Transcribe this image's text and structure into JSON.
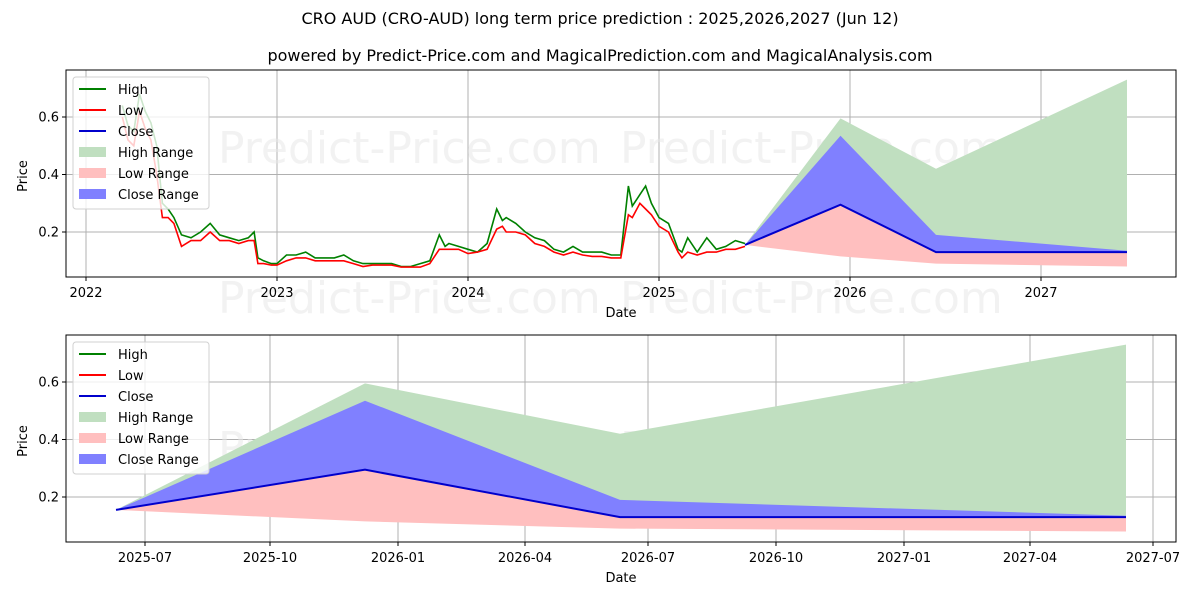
{
  "header": {
    "title": "CRO AUD (CRO-AUD) long term price prediction : 2025,2026,2027 (Jun 12)",
    "subtitle": "powered by Predict-Price.com and MagicalPrediction.com and MagicalAnalysis.com"
  },
  "watermark": "Predict-Price.com",
  "colors": {
    "high": "#008000",
    "low": "#ff0000",
    "close": "#0000cc",
    "high_range": "#c0dfc0",
    "low_range": "#ffbfbf",
    "close_range": "#8080ff"
  },
  "legend": [
    "High",
    "Low",
    "Close",
    "High Range",
    "Low Range",
    "Close Range"
  ],
  "chart_data": [
    {
      "type": "line",
      "title": "CRO AUD (CRO-AUD) long term price prediction : 2025,2026,2027 (Jun 12)",
      "xlabel": "Date",
      "ylabel": "Price",
      "xticks": [
        "2022",
        "2023",
        "2024",
        "2025",
        "2026",
        "2027"
      ],
      "yticks": [
        "0.2",
        "0.4",
        "0.6"
      ],
      "xlim": [
        2021.9,
        2027.7
      ],
      "ylim": [
        0.035,
        0.76
      ],
      "grid": true,
      "legend_position": "upper left",
      "history": {
        "x": [
          2022.19,
          2022.22,
          2022.25,
          2022.28,
          2022.31,
          2022.34,
          2022.37,
          2022.4,
          2022.43,
          2022.46,
          2022.5,
          2022.55,
          2022.6,
          2022.65,
          2022.7,
          2022.75,
          2022.8,
          2022.85,
          2022.88,
          2022.9,
          2022.93,
          2022.97,
          2023.0,
          2023.05,
          2023.1,
          2023.15,
          2023.2,
          2023.25,
          2023.3,
          2023.35,
          2023.4,
          2023.45,
          2023.5,
          2023.55,
          2023.6,
          2023.65,
          2023.7,
          2023.75,
          2023.8,
          2023.85,
          2023.88,
          2023.9,
          2023.95,
          2024.0,
          2024.05,
          2024.1,
          2024.15,
          2024.18,
          2024.2,
          2024.25,
          2024.3,
          2024.35,
          2024.4,
          2024.45,
          2024.5,
          2024.55,
          2024.6,
          2024.65,
          2024.7,
          2024.75,
          2024.8,
          2024.84,
          2024.86,
          2024.9,
          2024.93,
          2024.96,
          2025.0,
          2025.05,
          2025.1,
          2025.12,
          2025.15,
          2025.2,
          2025.25,
          2025.3,
          2025.35,
          2025.4,
          2025.45
        ],
        "high": [
          0.64,
          0.57,
          0.55,
          0.68,
          0.62,
          0.58,
          0.5,
          0.3,
          0.28,
          0.25,
          0.19,
          0.18,
          0.2,
          0.23,
          0.19,
          0.18,
          0.17,
          0.18,
          0.2,
          0.11,
          0.1,
          0.09,
          0.09,
          0.12,
          0.12,
          0.13,
          0.11,
          0.11,
          0.11,
          0.12,
          0.1,
          0.09,
          0.09,
          0.09,
          0.09,
          0.08,
          0.08,
          0.09,
          0.1,
          0.19,
          0.15,
          0.16,
          0.15,
          0.14,
          0.13,
          0.16,
          0.28,
          0.24,
          0.25,
          0.23,
          0.2,
          0.18,
          0.17,
          0.14,
          0.13,
          0.15,
          0.13,
          0.13,
          0.13,
          0.12,
          0.12,
          0.36,
          0.29,
          0.33,
          0.36,
          0.3,
          0.25,
          0.23,
          0.14,
          0.13,
          0.18,
          0.13,
          0.18,
          0.14,
          0.15,
          0.17,
          0.16
        ],
        "low": [
          0.6,
          0.52,
          0.5,
          0.62,
          0.56,
          0.52,
          0.4,
          0.25,
          0.25,
          0.23,
          0.15,
          0.17,
          0.17,
          0.2,
          0.17,
          0.17,
          0.16,
          0.17,
          0.17,
          0.09,
          0.09,
          0.085,
          0.085,
          0.1,
          0.11,
          0.11,
          0.1,
          0.1,
          0.1,
          0.1,
          0.09,
          0.08,
          0.085,
          0.085,
          0.085,
          0.078,
          0.078,
          0.078,
          0.09,
          0.14,
          0.14,
          0.14,
          0.14,
          0.125,
          0.13,
          0.14,
          0.21,
          0.22,
          0.2,
          0.2,
          0.19,
          0.16,
          0.15,
          0.13,
          0.12,
          0.13,
          0.12,
          0.115,
          0.115,
          0.11,
          0.11,
          0.26,
          0.25,
          0.3,
          0.28,
          0.26,
          0.22,
          0.2,
          0.13,
          0.11,
          0.13,
          0.12,
          0.13,
          0.13,
          0.14,
          0.14,
          0.15
        ]
      },
      "forecast": {
        "dates": [
          "2025-06-12",
          "2025-12-12",
          "2026-06-12",
          "2027-06-12"
        ],
        "x": [
          2025.45,
          2025.95,
          2026.45,
          2027.45
        ],
        "high_range_top": [
          0.155,
          0.595,
          0.42,
          0.73
        ],
        "close_range_top": [
          0.155,
          0.535,
          0.19,
          0.135
        ],
        "close": [
          0.155,
          0.295,
          0.13,
          0.13
        ],
        "close_range_bottom": [
          0.155,
          0.295,
          0.13,
          0.125
        ],
        "low_range_bottom": [
          0.155,
          0.115,
          0.09,
          0.08
        ]
      }
    },
    {
      "type": "area",
      "xlabel": "Date",
      "ylabel": "Price",
      "xticks": [
        "2025-07",
        "2025-10",
        "2026-01",
        "2026-04",
        "2026-07",
        "2026-10",
        "2027-01",
        "2027-04",
        "2027-07"
      ],
      "yticks": [
        "0.2",
        "0.4",
        "0.6"
      ],
      "ylim": [
        0.035,
        0.76
      ],
      "grid": true,
      "legend_position": "upper left",
      "forecast": {
        "dates": [
          "2025-06-12",
          "2025-12-12",
          "2026-06-12",
          "2027-06-12"
        ],
        "high_range_top": [
          0.155,
          0.595,
          0.42,
          0.73
        ],
        "close_range_top": [
          0.155,
          0.535,
          0.19,
          0.135
        ],
        "close": [
          0.155,
          0.295,
          0.13,
          0.13
        ],
        "low_range_bottom": [
          0.155,
          0.115,
          0.09,
          0.08
        ]
      }
    }
  ]
}
